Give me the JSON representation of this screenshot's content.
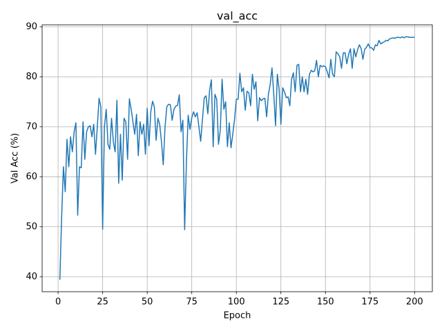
{
  "chart_data": {
    "type": "line",
    "title": "val_acc",
    "x_label": "Epoch",
    "y_label": "Val Acc (%)",
    "x": [
      1,
      2,
      3,
      4,
      5,
      6,
      7,
      8,
      9,
      10,
      11,
      12,
      13,
      14,
      15,
      16,
      17,
      18,
      19,
      20,
      21,
      22,
      23,
      24,
      25,
      26,
      27,
      28,
      29,
      30,
      31,
      32,
      33,
      34,
      35,
      36,
      37,
      38,
      39,
      40,
      41,
      42,
      43,
      44,
      45,
      46,
      47,
      48,
      49,
      50,
      51,
      52,
      53,
      54,
      55,
      56,
      57,
      58,
      59,
      60,
      61,
      62,
      63,
      64,
      65,
      66,
      67,
      68,
      69,
      70,
      71,
      72,
      73,
      74,
      75,
      76,
      77,
      78,
      79,
      80,
      81,
      82,
      83,
      84,
      85,
      86,
      87,
      88,
      89,
      90,
      91,
      92,
      93,
      94,
      95,
      96,
      97,
      98,
      99,
      100,
      101,
      102,
      103,
      104,
      105,
      106,
      107,
      108,
      109,
      110,
      111,
      112,
      113,
      114,
      115,
      116,
      117,
      118,
      119,
      120,
      121,
      122,
      123,
      124,
      125,
      126,
      127,
      128,
      129,
      130,
      131,
      132,
      133,
      134,
      135,
      136,
      137,
      138,
      139,
      140,
      141,
      142,
      143,
      144,
      145,
      146,
      147,
      148,
      149,
      150,
      151,
      152,
      153,
      154,
      155,
      156,
      157,
      158,
      159,
      160,
      161,
      162,
      163,
      164,
      165,
      166,
      167,
      168,
      169,
      170,
      171,
      172,
      173,
      174,
      175,
      176,
      177,
      178,
      179,
      180,
      181,
      182,
      183,
      184,
      185,
      186,
      187,
      188,
      189,
      190,
      191,
      192,
      193,
      194,
      195,
      196,
      197,
      198,
      199,
      200
    ],
    "series": [
      {
        "name": "val_acc",
        "color": "#1f77b4",
        "values": [
          39.4,
          52,
          62,
          57,
          67.5,
          62,
          68,
          65,
          69,
          70.8,
          52.3,
          62,
          61.8,
          71,
          63.5,
          69,
          70,
          70.2,
          68,
          70.5,
          64.5,
          70,
          75.7,
          74,
          49.5,
          70,
          73.5,
          66.5,
          65.5,
          71.7,
          67,
          65,
          75.3,
          58.7,
          68.5,
          59.3,
          71.7,
          71,
          63.5,
          75.6,
          73.5,
          71,
          68.5,
          72.5,
          64.2,
          71,
          68.5,
          70.5,
          64.5,
          73.7,
          66.2,
          73,
          75.1,
          74,
          67.3,
          71.7,
          70.5,
          67,
          62.4,
          70,
          74,
          74.5,
          74.4,
          71.3,
          73.5,
          74.1,
          74.3,
          76.4,
          69,
          71.3,
          49.4,
          63,
          72.3,
          69.5,
          71.8,
          73,
          72,
          72.8,
          70,
          67.1,
          71.5,
          75.8,
          76.2,
          72.6,
          77.3,
          79.4,
          66,
          76.5,
          75.5,
          66.5,
          69.3,
          79.5,
          73.5,
          75,
          66,
          70.8,
          65.8,
          68.5,
          71.5,
          75.5,
          75.5,
          80.7,
          77,
          77.8,
          73.3,
          77.1,
          76.8,
          74.2,
          80.5,
          77.5,
          79,
          71.2,
          75.8,
          75.2,
          75.6,
          75.7,
          72,
          76.5,
          78.5,
          81.8,
          76.5,
          70.2,
          80.5,
          77.5,
          70.5,
          77.8,
          77,
          75.8,
          76,
          74.2,
          79.5,
          80.8,
          77,
          82.3,
          82.5,
          77,
          80,
          77,
          79.5,
          76.5,
          80.5,
          81.3,
          81,
          81.2,
          83.3,
          80,
          82.3,
          82,
          82.2,
          82,
          81,
          79.8,
          83.5,
          80.5,
          80,
          85,
          84.6,
          84,
          81.7,
          84.8,
          84.8,
          82.6,
          84.5,
          85.6,
          81.7,
          85.6,
          84,
          85.4,
          86.4,
          85.7,
          83.5,
          85.5,
          85.9,
          86.6,
          85.8,
          85.8,
          85.3,
          86.4,
          86.2,
          87.3,
          86.6,
          86.8,
          87,
          87.3,
          87.2,
          87.6,
          87.7,
          87.8,
          87.7,
          87.9,
          87.9,
          87.8,
          88,
          87.8,
          88,
          88,
          87.9,
          87.9,
          87.9,
          87.9
        ]
      }
    ],
    "xlim": [
      -8.95,
      209.95
    ],
    "ylim": [
      37.0,
      90.4
    ],
    "xticks": [
      0,
      25,
      50,
      75,
      100,
      125,
      150,
      175,
      200
    ],
    "yticks": [
      40,
      50,
      60,
      70,
      80,
      90
    ],
    "grid": true
  }
}
